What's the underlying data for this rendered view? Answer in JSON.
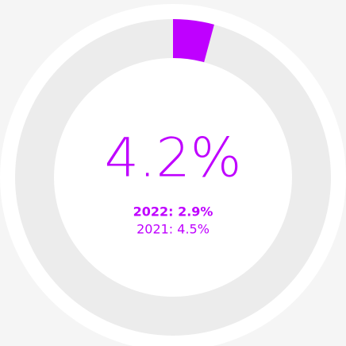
{
  "chart_data": {
    "type": "gauge",
    "values": [
      4.2
    ],
    "value_labels": [
      "4.2%"
    ],
    "color": "#bf00ff",
    "ylim": [
      0,
      100
    ],
    "annotations": [
      "2022: 2.9%",
      "2021: 4.5%"
    ]
  }
}
